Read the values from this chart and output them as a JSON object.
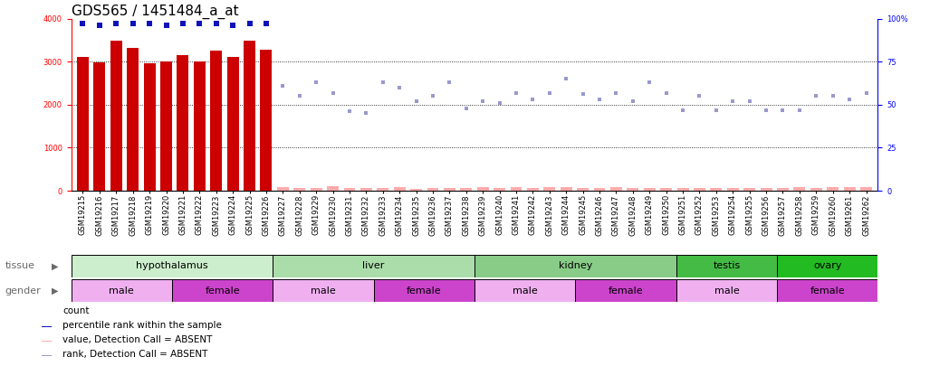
{
  "title": "GDS565 / 1451484_a_at",
  "samples": [
    "GSM19215",
    "GSM19216",
    "GSM19217",
    "GSM19218",
    "GSM19219",
    "GSM19220",
    "GSM19221",
    "GSM19222",
    "GSM19223",
    "GSM19224",
    "GSM19225",
    "GSM19226",
    "GSM19227",
    "GSM19228",
    "GSM19229",
    "GSM19230",
    "GSM19231",
    "GSM19232",
    "GSM19233",
    "GSM19234",
    "GSM19235",
    "GSM19236",
    "GSM19237",
    "GSM19238",
    "GSM19239",
    "GSM19240",
    "GSM19241",
    "GSM19242",
    "GSM19243",
    "GSM19244",
    "GSM19245",
    "GSM19246",
    "GSM19247",
    "GSM19248",
    "GSM19249",
    "GSM19250",
    "GSM19251",
    "GSM19252",
    "GSM19253",
    "GSM19254",
    "GSM19255",
    "GSM19256",
    "GSM19257",
    "GSM19258",
    "GSM19259",
    "GSM19260",
    "GSM19261",
    "GSM19262"
  ],
  "count_values": [
    3100,
    2980,
    3480,
    3310,
    2960,
    3010,
    3150,
    3000,
    3260,
    3100,
    3490,
    3270,
    null,
    null,
    null,
    null,
    null,
    null,
    null,
    null,
    null,
    null,
    null,
    null,
    null,
    null,
    null,
    null,
    null,
    null,
    null,
    null,
    null,
    null,
    null,
    null,
    null,
    null,
    null,
    null,
    null,
    null,
    null,
    null,
    null,
    null,
    null,
    null
  ],
  "absent_value_values": [
    null,
    null,
    null,
    null,
    null,
    null,
    null,
    null,
    null,
    null,
    null,
    null,
    80,
    60,
    70,
    100,
    70,
    55,
    70,
    75,
    50,
    60,
    65,
    55,
    75,
    55,
    90,
    60,
    75,
    80,
    65,
    70,
    75,
    60,
    70,
    60,
    55,
    60,
    55,
    65,
    70,
    60,
    55,
    75,
    65,
    75,
    80,
    90
  ],
  "percentile_present": [
    97,
    96,
    97,
    97,
    97,
    96,
    97,
    97,
    97,
    96,
    97,
    97,
    null,
    null,
    null,
    null,
    null,
    null,
    null,
    null,
    null,
    null,
    null,
    null,
    null,
    null,
    null,
    null,
    null,
    null,
    null,
    null,
    null,
    null,
    null,
    null,
    null,
    null,
    null,
    null,
    null,
    null,
    null,
    null,
    null,
    null,
    null,
    null
  ],
  "percentile_absent": [
    null,
    null,
    null,
    null,
    null,
    null,
    null,
    null,
    null,
    null,
    null,
    null,
    61,
    55,
    63,
    57,
    46,
    45,
    63,
    60,
    52,
    55,
    63,
    48,
    52,
    51,
    57,
    53,
    57,
    65,
    56,
    53,
    57,
    52,
    63,
    57,
    47,
    55,
    47,
    52,
    52,
    47,
    47,
    47,
    55,
    55,
    53,
    57
  ],
  "tissue_groups": [
    {
      "label": "hypothalamus",
      "start": 0,
      "end": 11,
      "color": "#cceecc"
    },
    {
      "label": "liver",
      "start": 12,
      "end": 23,
      "color": "#aaddaa"
    },
    {
      "label": "kidney",
      "start": 24,
      "end": 35,
      "color": "#88cc88"
    },
    {
      "label": "testis",
      "start": 36,
      "end": 41,
      "color": "#44bb44"
    },
    {
      "label": "ovary",
      "start": 42,
      "end": 47,
      "color": "#22bb22"
    }
  ],
  "gender_groups": [
    {
      "label": "male",
      "start": 0,
      "end": 5,
      "color": "#f0b0f0"
    },
    {
      "label": "female",
      "start": 6,
      "end": 11,
      "color": "#cc44cc"
    },
    {
      "label": "male",
      "start": 12,
      "end": 17,
      "color": "#f0b0f0"
    },
    {
      "label": "female",
      "start": 18,
      "end": 23,
      "color": "#cc44cc"
    },
    {
      "label": "male",
      "start": 24,
      "end": 29,
      "color": "#f0b0f0"
    },
    {
      "label": "female",
      "start": 30,
      "end": 35,
      "color": "#cc44cc"
    },
    {
      "label": "male",
      "start": 36,
      "end": 41,
      "color": "#f0b0f0"
    },
    {
      "label": "female",
      "start": 42,
      "end": 47,
      "color": "#cc44cc"
    }
  ],
  "ylim_left": [
    0,
    4000
  ],
  "ylim_right": [
    0,
    100
  ],
  "yticks_left": [
    0,
    1000,
    2000,
    3000,
    4000
  ],
  "yticks_right": [
    0,
    25,
    50,
    75,
    100
  ],
  "bar_color": "#cc0000",
  "absent_bar_color": "#ffaaaa",
  "dot_present_color": "#1111bb",
  "dot_absent_color": "#9999cc",
  "title_fontsize": 11,
  "tick_fontsize": 6,
  "label_fontsize": 8,
  "legend_fontsize": 7.5
}
